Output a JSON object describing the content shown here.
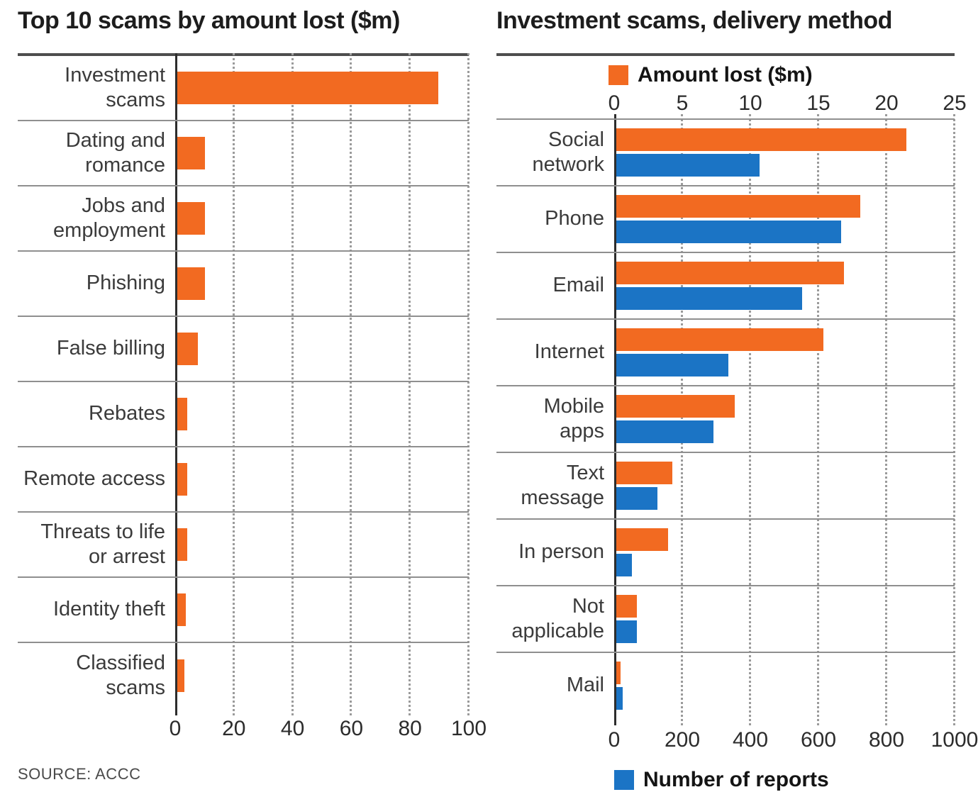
{
  "chart_data": [
    {
      "type": "bar",
      "orientation": "horizontal",
      "title": "Top 10 scams by amount lost ($m)",
      "categories": [
        "Investment scams",
        "Dating and romance",
        "Jobs and employment",
        "Phishing",
        "False billing",
        "Rebates",
        "Remote access",
        "Threats to life or arrest",
        "Identity theft",
        "Classified scams"
      ],
      "values": [
        89,
        9.5,
        9.5,
        9.5,
        7,
        3.5,
        3.5,
        3.5,
        3,
        2.5
      ],
      "xlabel": "",
      "ylabel": "",
      "xlim": [
        0,
        100
      ],
      "xticks": [
        0,
        20,
        40,
        60,
        80,
        100
      ],
      "grid": "dotted-vertical",
      "bar_color": "#f26a21",
      "source": "SOURCE: ACCC"
    },
    {
      "type": "bar",
      "orientation": "horizontal",
      "title": "Investment scams, delivery method",
      "categories": [
        "Social network",
        "Phone",
        "Email",
        "Internet",
        "Mobile apps",
        "Text message",
        "In person",
        "Not applicable",
        "Mail"
      ],
      "series": [
        {
          "name": "Amount lost ($m)",
          "color": "#f26a21",
          "axis": "top",
          "legend_position": "top",
          "xlim": [
            0,
            25
          ],
          "xticks": [
            0,
            5,
            10,
            15,
            20,
            25
          ],
          "values": [
            21.3,
            17.9,
            16.7,
            15.2,
            8.7,
            4.1,
            3.8,
            1.5,
            0.3
          ]
        },
        {
          "name": "Number of reports",
          "color": "#1b74c5",
          "axis": "bottom",
          "legend_position": "bottom",
          "xlim": [
            0,
            1000
          ],
          "xticks": [
            0,
            200,
            400,
            600,
            800,
            1000
          ],
          "values": [
            420,
            660,
            545,
            330,
            285,
            120,
            45,
            60,
            18
          ]
        }
      ],
      "grid": "dotted-vertical"
    }
  ]
}
